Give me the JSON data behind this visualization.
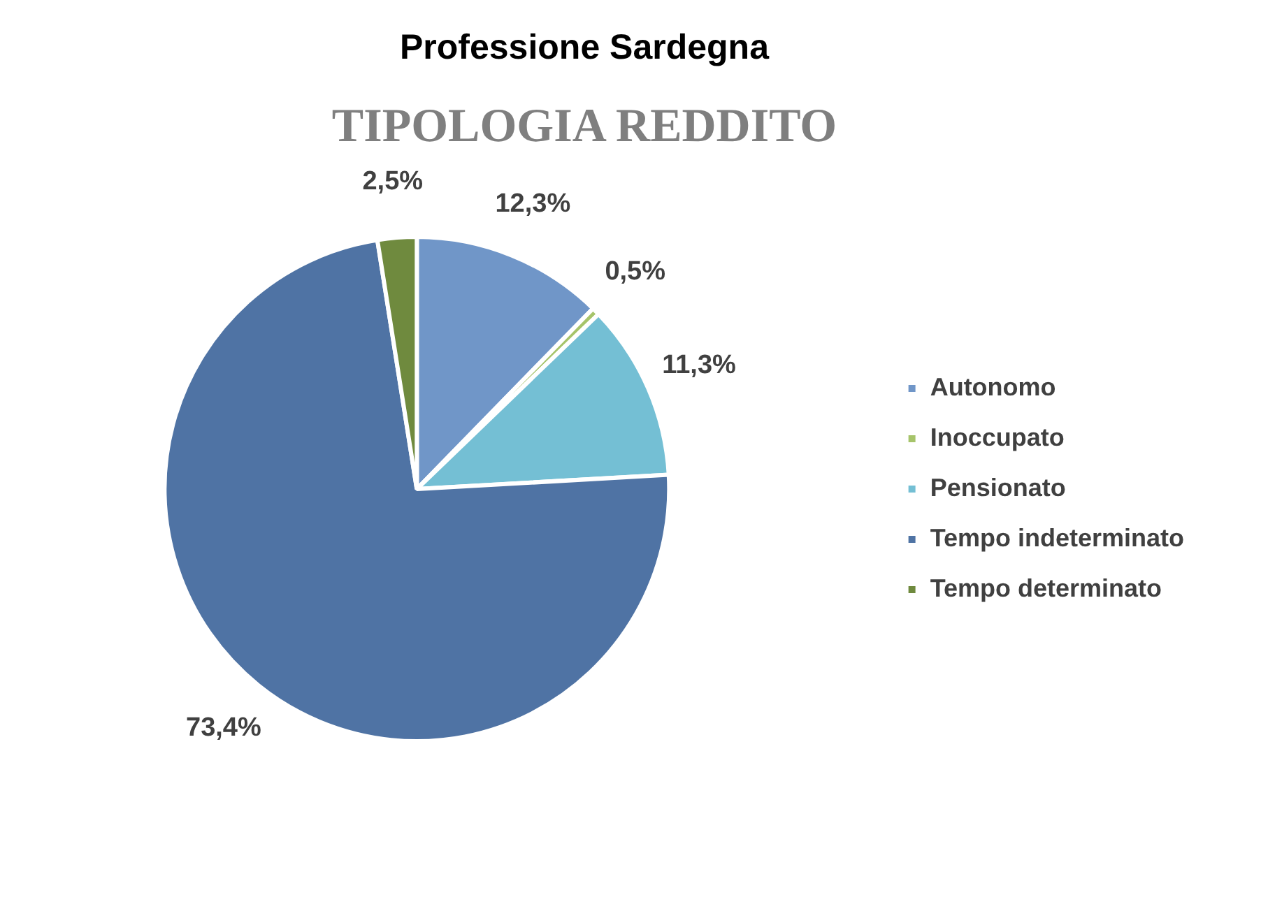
{
  "chart_data": {
    "type": "pie",
    "title": "Professione Sardegna",
    "subtitle": "TIPOLOGIA REDDITO",
    "categories": [
      "Autonomo",
      "Inoccupato",
      "Pensionato",
      "Tempo indeterminato",
      "Tempo determinato"
    ],
    "values": [
      12.3,
      0.5,
      11.3,
      73.4,
      2.5
    ],
    "colors": [
      "#7096c8",
      "#a6c46a",
      "#74bfd4",
      "#4f73a4",
      "#6f8a3e"
    ],
    "value_labels": [
      "12,3%",
      "0,5%",
      "11,3%",
      "73,4%",
      "2,5%"
    ],
    "legend": "right"
  }
}
